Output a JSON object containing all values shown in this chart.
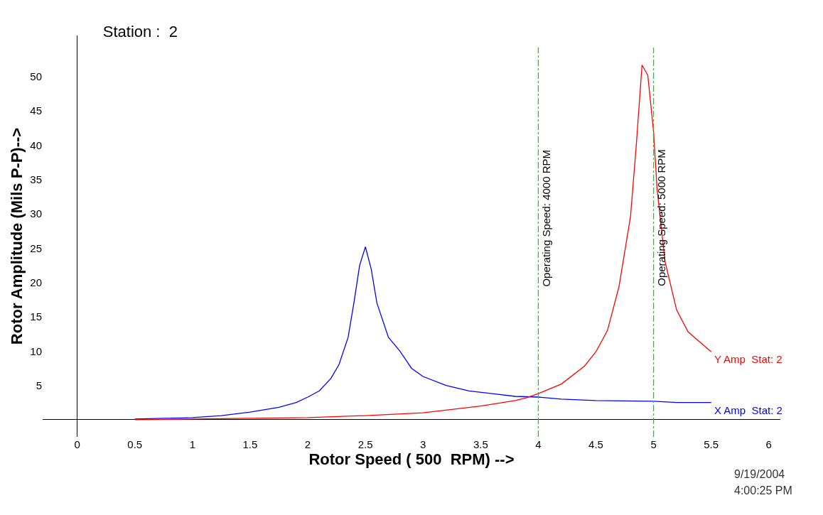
{
  "chart_data": {
    "type": "line",
    "title": "Station :  2",
    "xlabel": "Rotor Speed ( 500  RPM) -->",
    "ylabel": "Rotor Amplitude (Mils P-P)-->",
    "annotations": [
      "9/19/2004",
      "4:00:25 PM"
    ],
    "series": [
      {
        "name": "X Amp  Stat: 2",
        "color": "#0000ff",
        "x": [
          0.5,
          0.75,
          1.0,
          1.25,
          1.5,
          1.75,
          1.9,
          2.0,
          2.1,
          2.2,
          2.27,
          2.35,
          2.4,
          2.45,
          2.5,
          2.55,
          2.6,
          2.7,
          2.8,
          2.9,
          3.0,
          3.2,
          3.4,
          3.6,
          3.8,
          4.0,
          4.2,
          4.5,
          5.0,
          5.2,
          5.5
        ],
        "values": [
          0.1,
          0.2,
          0.3,
          0.6,
          1.1,
          1.8,
          2.5,
          3.3,
          4.2,
          6.0,
          8.0,
          12.0,
          17.0,
          22.5,
          25.2,
          22.0,
          17.0,
          12.0,
          10.0,
          7.5,
          6.3,
          5.0,
          4.2,
          3.8,
          3.4,
          3.3,
          3.0,
          2.8,
          2.7,
          2.5,
          2.5
        ]
      },
      {
        "name": "Y Amp  Stat: 2",
        "color": "#ff0000",
        "x": [
          0.5,
          1.0,
          1.5,
          2.0,
          2.5,
          3.0,
          3.5,
          3.8,
          3.9,
          4.0,
          4.2,
          4.4,
          4.5,
          4.6,
          4.7,
          4.8,
          4.85,
          4.9,
          4.95,
          5.0,
          5.03,
          5.1,
          5.2,
          5.3,
          5.5
        ],
        "values": [
          0.0,
          0.1,
          0.2,
          0.3,
          0.6,
          1.0,
          2.0,
          2.8,
          3.2,
          3.8,
          5.2,
          7.8,
          9.9,
          13.0,
          19.4,
          29.6,
          40.0,
          51.7,
          50.2,
          42.0,
          33.7,
          23.0,
          16.0,
          12.8,
          9.9
        ]
      }
    ],
    "ref_lines": [
      {
        "axis": "x",
        "value": 4,
        "label": "Operating Speed: 4000 RPM",
        "color": "#00dd00",
        "line_style": "dashdot"
      },
      {
        "axis": "x",
        "value": 5,
        "label": "Operating Speed: 5000 RPM",
        "color": "#00dd00",
        "line_style": "dashdot"
      }
    ],
    "xlim": [
      -0.3,
      6.1
    ],
    "ylim": [
      -2.5,
      56
    ],
    "xticks": [
      0,
      0.5,
      1,
      1.5,
      2,
      2.5,
      3,
      3.5,
      4,
      4.5,
      5,
      5.5,
      6
    ],
    "yticks": [
      5,
      10,
      15,
      20,
      25,
      30,
      35,
      40,
      45,
      50
    ],
    "legend": false,
    "marker": "none",
    "line_style": "solid"
  }
}
